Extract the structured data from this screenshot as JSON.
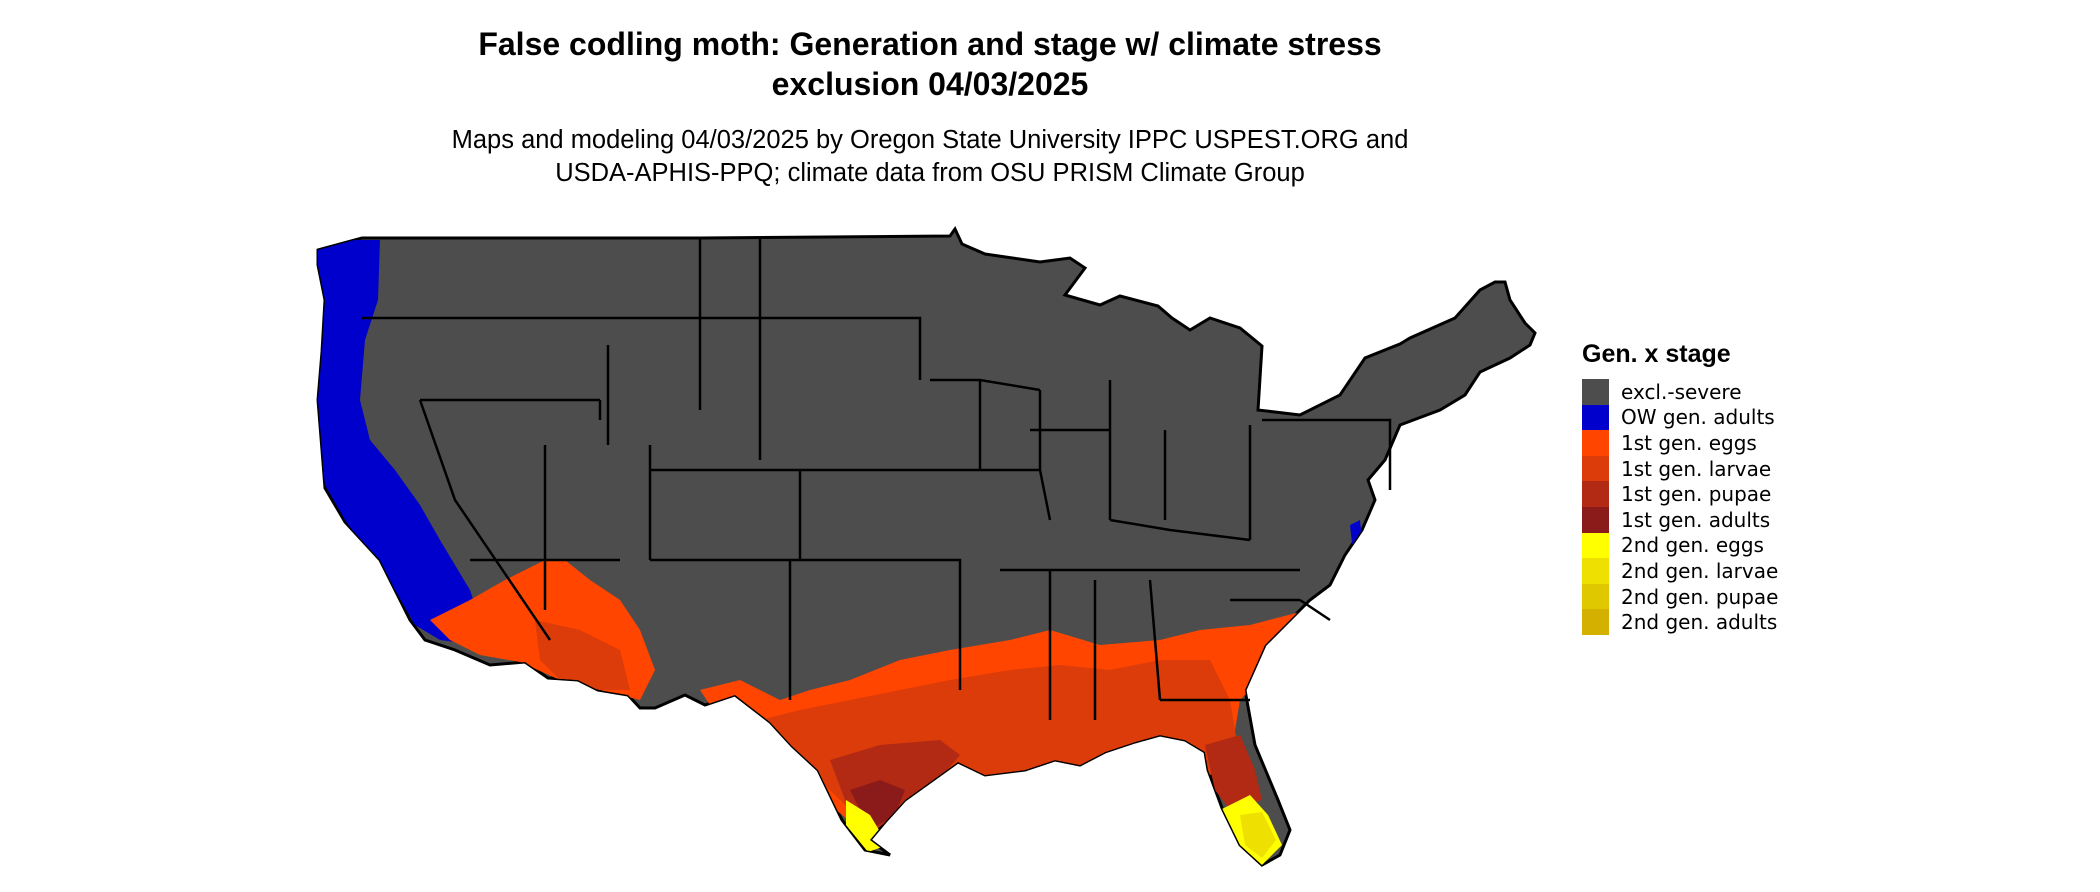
{
  "header": {
    "title_line1": "False codling moth: Generation and stage w/ climate stress",
    "title_line2": "exclusion 04/03/2025",
    "subtitle_line1": "Maps and modeling 04/03/2025 by Oregon State University IPPC USPEST.ORG and",
    "subtitle_line2": "USDA-APHIS-PPQ; climate data from OSU PRISM Climate Group"
  },
  "legend": {
    "title": "Gen. x stage",
    "items": [
      {
        "label": "excl.-severe",
        "color": "#4d4d4d"
      },
      {
        "label": "OW gen. adults",
        "color": "#0000cd"
      },
      {
        "label": "1st gen. eggs",
        "color": "#ff4500"
      },
      {
        "label": "1st gen. larvae",
        "color": "#db3c0a"
      },
      {
        "label": "1st gen. pupae",
        "color": "#b22a14"
      },
      {
        "label": "1st gen. adults",
        "color": "#8b1a1a"
      },
      {
        "label": "2nd gen. eggs",
        "color": "#ffff00"
      },
      {
        "label": "2nd gen. larvae",
        "color": "#eee000"
      },
      {
        "label": "2nd gen. pupae",
        "color": "#e0c800"
      },
      {
        "label": "2nd gen. adults",
        "color": "#d4b000"
      }
    ]
  },
  "map": {
    "region": "contiguous-united-states",
    "state_border_color": "#000000"
  }
}
